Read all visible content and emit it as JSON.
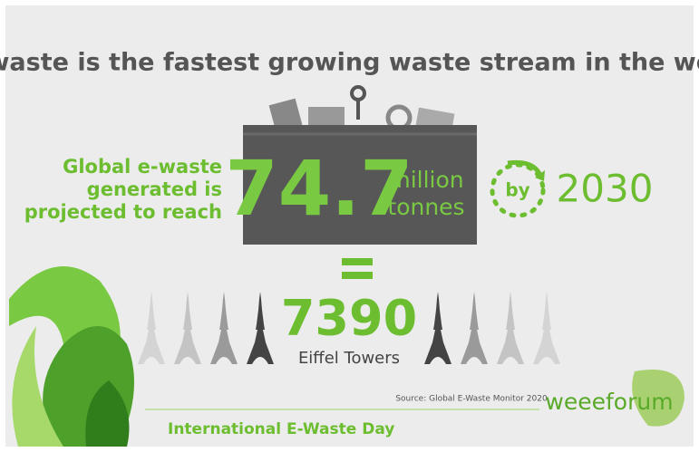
{
  "title": "E-waste is the fastest  growing waste stream in the world",
  "lead": [
    "Global e-waste",
    "generated is",
    "projected to reach"
  ],
  "amount": {
    "number": "74.7",
    "unit": [
      "million",
      "tonnes"
    ]
  },
  "target": {
    "by": "by",
    "year": "2030"
  },
  "equivalent": {
    "number": "7390",
    "label": "Eiffel Towers"
  },
  "source": "Source: Global E-Waste Monitor 2020",
  "footer": "International E-Waste Day",
  "logo": "weeeforum"
}
